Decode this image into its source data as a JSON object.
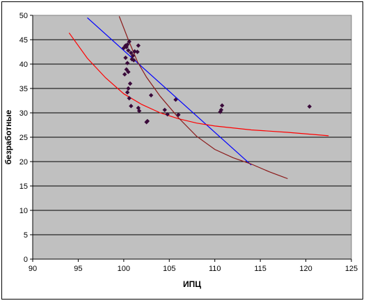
{
  "chart_data": {
    "type": "scatter",
    "title": "",
    "xlabel": "ИПЦ",
    "ylabel": "безработные",
    "xlim": [
      90,
      125
    ],
    "ylim": [
      0,
      50
    ],
    "x_ticks": [
      "90",
      "95",
      "100",
      "105",
      "110",
      "115",
      "120",
      "125"
    ],
    "y_ticks": [
      "0",
      "5",
      "10",
      "15",
      "20",
      "25",
      "30",
      "35",
      "40",
      "45",
      "50"
    ],
    "grid": "horizontal",
    "legend": "none",
    "plot_background": "#c0c0c0",
    "points_color": "#3a0a3a",
    "points": [
      {
        "x": 100.0,
        "y": 43.3
      },
      {
        "x": 100.2,
        "y": 43.8
      },
      {
        "x": 100.4,
        "y": 44.0
      },
      {
        "x": 100.6,
        "y": 44.6
      },
      {
        "x": 100.3,
        "y": 43.5
      },
      {
        "x": 100.5,
        "y": 42.8
      },
      {
        "x": 100.8,
        "y": 42.3
      },
      {
        "x": 101.0,
        "y": 41.7
      },
      {
        "x": 101.2,
        "y": 42.6
      },
      {
        "x": 101.5,
        "y": 42.5
      },
      {
        "x": 101.6,
        "y": 43.8
      },
      {
        "x": 100.9,
        "y": 41.0
      },
      {
        "x": 101.1,
        "y": 40.8
      },
      {
        "x": 100.2,
        "y": 41.3
      },
      {
        "x": 100.4,
        "y": 40.2
      },
      {
        "x": 100.3,
        "y": 38.9
      },
      {
        "x": 100.1,
        "y": 37.9
      },
      {
        "x": 100.5,
        "y": 38.4
      },
      {
        "x": 100.7,
        "y": 36.0
      },
      {
        "x": 100.5,
        "y": 35.0
      },
      {
        "x": 100.4,
        "y": 34.2
      },
      {
        "x": 100.6,
        "y": 33.0
      },
      {
        "x": 100.8,
        "y": 31.4
      },
      {
        "x": 101.6,
        "y": 31.0
      },
      {
        "x": 101.7,
        "y": 30.4
      },
      {
        "x": 103.0,
        "y": 33.6
      },
      {
        "x": 102.6,
        "y": 28.3
      },
      {
        "x": 102.5,
        "y": 28.1
      },
      {
        "x": 104.5,
        "y": 30.6
      },
      {
        "x": 104.8,
        "y": 29.7
      },
      {
        "x": 105.7,
        "y": 32.7
      },
      {
        "x": 106.0,
        "y": 29.6
      },
      {
        "x": 110.6,
        "y": 30.2
      },
      {
        "x": 110.7,
        "y": 30.6
      },
      {
        "x": 110.8,
        "y": 31.5
      },
      {
        "x": 120.4,
        "y": 31.3
      }
    ],
    "series": [
      {
        "line_type": "linear trend",
        "color": "#0000ff",
        "x": [
          96.0,
          114.0
        ],
        "y": [
          49.5,
          19.3
        ]
      },
      {
        "line_type": "power trend",
        "color": "#ff0000",
        "x": [
          94.0,
          96.0,
          98.0,
          100.0,
          102.0,
          104.0,
          106.0,
          108.0,
          110.0,
          114.0,
          118.0,
          122.5
        ],
        "y": [
          46.4,
          41.2,
          37.2,
          33.9,
          31.7,
          30.0,
          28.8,
          27.9,
          27.3,
          26.5,
          26.0,
          25.3
        ]
      },
      {
        "line_type": "exponential trend",
        "color": "#8b1a1a",
        "x": [
          99.5,
          100.5,
          101.5,
          102.5,
          104.0,
          106.0,
          108.0,
          110.0,
          112.0,
          114.0,
          116.0,
          118.0
        ],
        "y": [
          49.8,
          45.0,
          40.5,
          37.3,
          33.4,
          29.0,
          25.2,
          22.5,
          20.8,
          19.5,
          17.9,
          16.5
        ]
      }
    ]
  }
}
